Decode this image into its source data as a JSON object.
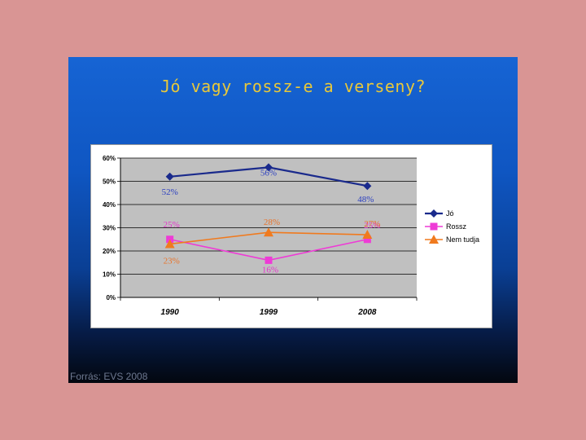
{
  "slide": {
    "title": "Jó vagy rossz-e a verseny?",
    "source": "Forrás: EVS 2008"
  },
  "colors": {
    "page_background": "#d99594",
    "title": "#e8c83a",
    "plot_area": "#c0c0c0"
  },
  "chart_data": {
    "type": "line",
    "title": "",
    "xlabel": "",
    "ylabel": "",
    "categories": [
      "1990",
      "1999",
      "2008"
    ],
    "ylim": [
      0,
      60
    ],
    "yticks": [
      "0%",
      "10%",
      "20%",
      "30%",
      "40%",
      "50%",
      "60%"
    ],
    "grid": true,
    "legend_position": "right",
    "series": [
      {
        "name": "Jó",
        "values": [
          52,
          56,
          48
        ],
        "labels": [
          "52%",
          "56%",
          "48%"
        ],
        "color": "#1a2a8c",
        "label_color": "#2b3fc0",
        "marker": "diamond"
      },
      {
        "name": "Rossz",
        "values": [
          25,
          16,
          25
        ],
        "labels": [
          "25%",
          "16%",
          "25%"
        ],
        "color": "#ee3bd6",
        "label_color": "#e633cc",
        "marker": "square"
      },
      {
        "name": "Nem tudja",
        "values": [
          23,
          28,
          27
        ],
        "labels": [
          "23%",
          "28%",
          "27%"
        ],
        "color": "#f07a1e",
        "label_color": "#e8732a",
        "marker": "triangle"
      }
    ]
  }
}
